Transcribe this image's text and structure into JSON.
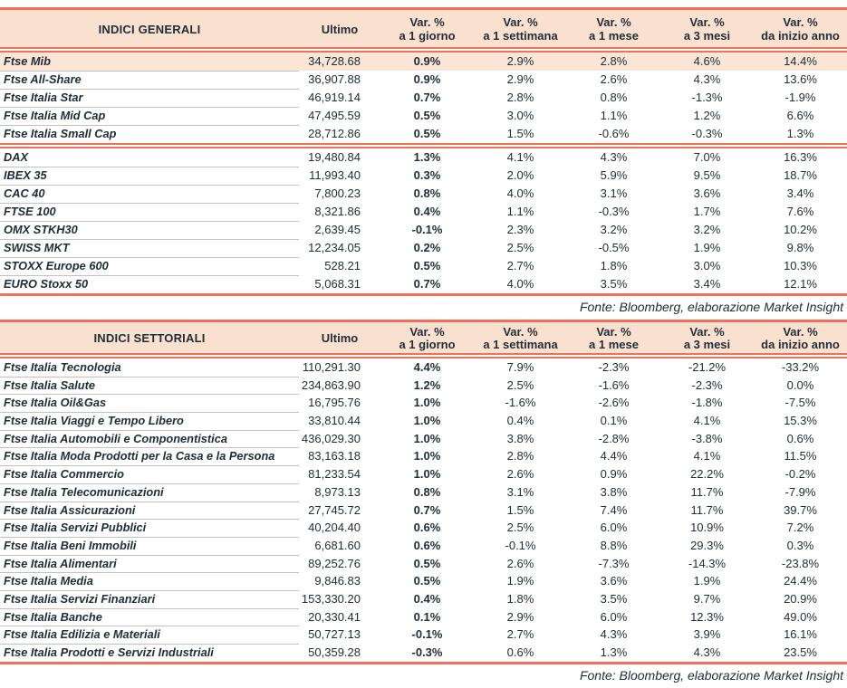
{
  "theme": {
    "accent_line_color": "#f0705a",
    "header_bg": "#fae1cf",
    "highlight_row_bg": "#fae5d6",
    "text_color": "#212e38",
    "row_divider_color": "#c2c2c2"
  },
  "column_headers": {
    "ultimo": "Ultimo",
    "var": "Var. %",
    "periods": [
      "a 1 giorno",
      "a 1 settimana",
      "a 1 mese",
      "a 3 mesi",
      "da inizio anno"
    ]
  },
  "general_table": {
    "title": "INDICI GENERALI",
    "fonte": "Fonte: Bloomberg, elaborazione Market Insight",
    "groups": [
      {
        "rows": [
          {
            "name": "Ftse Mib",
            "ultimo": "34,728.68",
            "vars": [
              "0.9%",
              "2.9%",
              "2.8%",
              "4.6%",
              "14.4%"
            ],
            "highlight": true
          },
          {
            "name": "Ftse All-Share",
            "ultimo": "36,907.88",
            "vars": [
              "0.9%",
              "2.9%",
              "2.6%",
              "4.3%",
              "13.6%"
            ]
          },
          {
            "name": "Ftse Italia Star",
            "ultimo": "46,919.14",
            "vars": [
              "0.7%",
              "2.8%",
              "0.8%",
              "-1.3%",
              "-1.9%"
            ]
          },
          {
            "name": "Ftse Italia Mid Cap",
            "ultimo": "47,495.59",
            "vars": [
              "0.5%",
              "3.0%",
              "1.1%",
              "1.2%",
              "6.6%"
            ]
          },
          {
            "name": "Ftse Italia Small Cap",
            "ultimo": "28,712.86",
            "vars": [
              "0.5%",
              "1.5%",
              "-0.6%",
              "-0.3%",
              "1.3%"
            ]
          }
        ]
      },
      {
        "rows": [
          {
            "name": "DAX",
            "ultimo": "19,480.84",
            "vars": [
              "1.3%",
              "4.1%",
              "4.3%",
              "7.0%",
              "16.3%"
            ]
          },
          {
            "name": "IBEX 35",
            "ultimo": "11,993.40",
            "vars": [
              "0.3%",
              "2.0%",
              "5.9%",
              "9.5%",
              "18.7%"
            ]
          },
          {
            "name": "CAC 40",
            "ultimo": "7,800.23",
            "vars": [
              "0.8%",
              "4.0%",
              "3.1%",
              "3.6%",
              "3.4%"
            ]
          },
          {
            "name": "FTSE 100",
            "ultimo": "8,321.86",
            "vars": [
              "0.4%",
              "1.1%",
              "-0.3%",
              "1.7%",
              "7.6%"
            ]
          },
          {
            "name": "OMX STKH30",
            "ultimo": "2,639.45",
            "vars": [
              "-0.1%",
              "2.3%",
              "3.2%",
              "3.2%",
              "10.2%"
            ]
          },
          {
            "name": "SWISS MKT",
            "ultimo": "12,234.05",
            "vars": [
              "0.2%",
              "2.5%",
              "-0.5%",
              "1.9%",
              "9.8%"
            ]
          },
          {
            "name": "STOXX Europe 600",
            "ultimo": "528.21",
            "vars": [
              "0.5%",
              "2.7%",
              "1.8%",
              "3.0%",
              "10.3%"
            ]
          },
          {
            "name": "EURO Stoxx 50",
            "ultimo": "5,068.31",
            "vars": [
              "0.7%",
              "4.0%",
              "3.5%",
              "3.4%",
              "12.1%"
            ]
          }
        ]
      }
    ]
  },
  "sector_table": {
    "title": "INDICI SETTORIALI",
    "fonte": "Fonte: Bloomberg, elaborazione Market Insight",
    "groups": [
      {
        "rows": [
          {
            "name": "Ftse Italia Tecnologia",
            "ultimo": "110,291.30",
            "vars": [
              "4.4%",
              "7.9%",
              "-2.3%",
              "-21.2%",
              "-33.2%"
            ]
          },
          {
            "name": "Ftse Italia Salute",
            "ultimo": "234,863.90",
            "vars": [
              "1.2%",
              "2.5%",
              "-1.6%",
              "-2.3%",
              "0.0%"
            ]
          },
          {
            "name": "Ftse Italia Oil&Gas",
            "ultimo": "16,795.76",
            "vars": [
              "1.0%",
              "-1.6%",
              "-2.6%",
              "-1.8%",
              "-7.5%"
            ]
          },
          {
            "name": "Ftse Italia Viaggi e Tempo Libero",
            "ultimo": "33,810.44",
            "vars": [
              "1.0%",
              "0.4%",
              "0.1%",
              "4.1%",
              "15.3%"
            ]
          },
          {
            "name": "Ftse Italia Automobili e Componentistica",
            "ultimo": "436,029.30",
            "vars": [
              "1.0%",
              "3.8%",
              "-2.8%",
              "-3.8%",
              "0.6%"
            ]
          },
          {
            "name": "Ftse Italia Moda Prodotti per la Casa e la Persona",
            "ultimo": "83,163.18",
            "vars": [
              "1.0%",
              "2.8%",
              "4.4%",
              "4.1%",
              "11.5%"
            ]
          },
          {
            "name": "Ftse Italia Commercio",
            "ultimo": "81,233.54",
            "vars": [
              "1.0%",
              "2.6%",
              "0.9%",
              "22.2%",
              "-0.2%"
            ]
          },
          {
            "name": "Ftse Italia Telecomunicazioni",
            "ultimo": "8,973.13",
            "vars": [
              "0.8%",
              "3.1%",
              "3.8%",
              "11.7%",
              "-7.9%"
            ]
          },
          {
            "name": "Ftse Italia Assicurazioni",
            "ultimo": "27,745.72",
            "vars": [
              "0.7%",
              "1.5%",
              "7.4%",
              "11.7%",
              "39.7%"
            ]
          },
          {
            "name": "Ftse Italia Servizi Pubblici",
            "ultimo": "40,204.40",
            "vars": [
              "0.6%",
              "2.5%",
              "6.0%",
              "10.9%",
              "7.2%"
            ]
          },
          {
            "name": "Ftse Italia Beni Immobili",
            "ultimo": "6,681.60",
            "vars": [
              "0.6%",
              "-0.1%",
              "8.8%",
              "29.3%",
              "0.3%"
            ]
          },
          {
            "name": "Ftse Italia Alimentari",
            "ultimo": "89,252.76",
            "vars": [
              "0.5%",
              "2.6%",
              "-7.3%",
              "-14.3%",
              "-23.8%"
            ]
          },
          {
            "name": "Ftse Italia Media",
            "ultimo": "9,846.83",
            "vars": [
              "0.5%",
              "1.9%",
              "3.6%",
              "1.9%",
              "24.4%"
            ]
          },
          {
            "name": "Ftse Italia Servizi Finanziari",
            "ultimo": "153,330.20",
            "vars": [
              "0.4%",
              "1.8%",
              "3.5%",
              "9.7%",
              "20.9%"
            ]
          },
          {
            "name": "Ftse Italia Banche",
            "ultimo": "20,330.41",
            "vars": [
              "0.1%",
              "2.9%",
              "6.0%",
              "12.3%",
              "49.0%"
            ]
          },
          {
            "name": "Ftse Italia Edilizia e Materiali",
            "ultimo": "50,727.13",
            "vars": [
              "-0.1%",
              "2.7%",
              "4.3%",
              "3.9%",
              "16.1%"
            ]
          },
          {
            "name": "Ftse Italia Prodotti e Servizi Industriali",
            "ultimo": "50,359.28",
            "vars": [
              "-0.3%",
              "0.6%",
              "1.3%",
              "4.3%",
              "23.5%"
            ]
          }
        ]
      }
    ]
  }
}
